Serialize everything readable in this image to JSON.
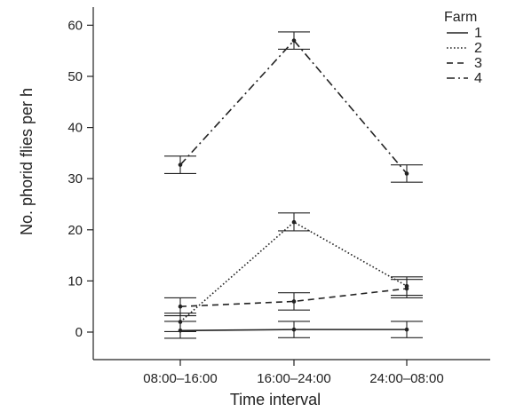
{
  "chart_data": {
    "type": "line",
    "title": "",
    "xlabel": "Time interval",
    "ylabel": "No. phorid flies per h",
    "categories": [
      "08:00–16:00",
      "16:00–24:00",
      "24:00–08:00"
    ],
    "ylim": [
      -5,
      62
    ],
    "yticks": [
      0,
      10,
      20,
      30,
      40,
      50,
      60
    ],
    "grid": false,
    "legend": {
      "title": "Farm",
      "placement": "top-right"
    },
    "series": [
      {
        "name": "1",
        "line_style": "solid",
        "values": [
          0.3,
          0.5,
          0.5
        ],
        "lower": [
          -1.2,
          -1.1,
          -1.1
        ],
        "upper": [
          2.1,
          2.1,
          2.1
        ]
      },
      {
        "name": "2",
        "line_style": "dotted",
        "values": [
          2.0,
          21.5,
          9.0
        ],
        "lower": [
          0.1,
          19.8,
          7.2
        ],
        "upper": [
          3.7,
          23.3,
          10.8
        ]
      },
      {
        "name": "3",
        "line_style": "dashed",
        "values": [
          5.0,
          6.0,
          8.5
        ],
        "lower": [
          3.2,
          4.3,
          6.7
        ],
        "upper": [
          6.7,
          7.7,
          10.3
        ]
      },
      {
        "name": "4",
        "line_style": "dash-dot",
        "values": [
          32.7,
          57.0,
          31.0
        ],
        "lower": [
          31.0,
          55.3,
          29.3
        ],
        "upper": [
          34.4,
          58.7,
          32.7
        ]
      }
    ],
    "line_color": "#222222"
  }
}
